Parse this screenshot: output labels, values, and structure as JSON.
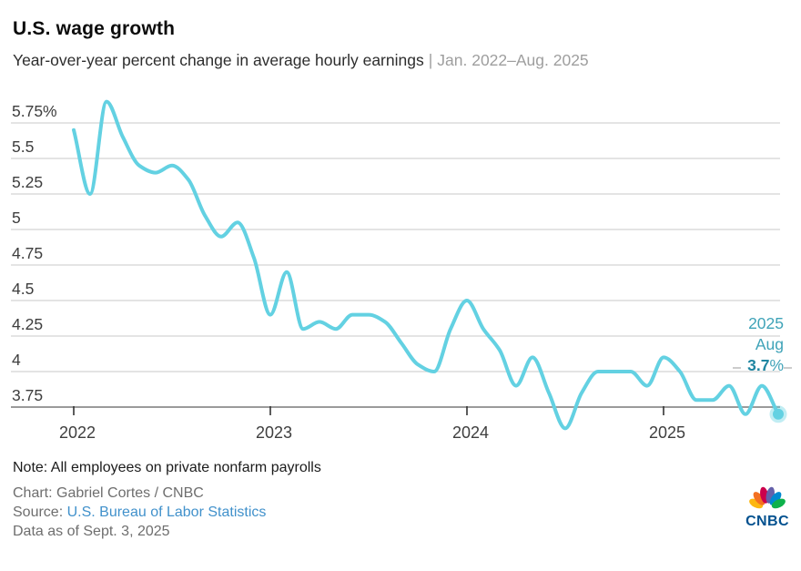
{
  "header": {
    "title": "U.S. wage growth",
    "subtitle": "Year-over-year percent change in average hourly earnings",
    "subtitle_separator": "|",
    "subtitle_range": "Jan. 2022–Aug. 2025"
  },
  "chart_data": {
    "type": "line",
    "title": "U.S. wage growth",
    "xlabel": "",
    "ylabel": "",
    "unit": "percent",
    "grid": "horizontal",
    "legend": "none",
    "ylim": [
      3.5,
      6.0
    ],
    "y_ticks": [
      5.75,
      5.5,
      5.25,
      5.0,
      4.75,
      4.5,
      4.25,
      4.0,
      3.75
    ],
    "y_tick_labels": [
      "5.75%",
      "5.5",
      "5.25",
      "5",
      "4.75",
      "4.5",
      "4.25",
      "4",
      "3.75"
    ],
    "x_tick_labels": [
      "2022",
      "2023",
      "2024",
      "2025"
    ],
    "x_tick_month_index": [
      0,
      12,
      24,
      36
    ],
    "months": [
      "Jan 2022",
      "Feb 2022",
      "Mar 2022",
      "Apr 2022",
      "May 2022",
      "Jun 2022",
      "Jul 2022",
      "Aug 2022",
      "Sep 2022",
      "Oct 2022",
      "Nov 2022",
      "Dec 2022",
      "Jan 2023",
      "Feb 2023",
      "Mar 2023",
      "Apr 2023",
      "May 2023",
      "Jun 2023",
      "Jul 2023",
      "Aug 2023",
      "Sep 2023",
      "Oct 2023",
      "Nov 2023",
      "Dec 2023",
      "Jan 2024",
      "Feb 2024",
      "Mar 2024",
      "Apr 2024",
      "May 2024",
      "Jun 2024",
      "Jul 2024",
      "Aug 2024",
      "Sep 2024",
      "Oct 2024",
      "Nov 2024",
      "Dec 2024",
      "Jan 2025",
      "Feb 2025",
      "Mar 2025",
      "Apr 2025",
      "May 2025",
      "Jun 2025",
      "Jul 2025",
      "Aug 2025"
    ],
    "series": [
      {
        "name": "Year-over-year percent change in average hourly earnings",
        "values": [
          5.7,
          5.25,
          5.9,
          5.65,
          5.45,
          5.4,
          5.45,
          5.35,
          5.1,
          4.95,
          5.05,
          4.8,
          4.4,
          4.7,
          4.3,
          4.35,
          4.3,
          4.4,
          4.4,
          4.35,
          4.2,
          4.05,
          4.0,
          4.3,
          4.5,
          4.3,
          4.15,
          3.9,
          4.1,
          3.85,
          3.6,
          3.85,
          4.0,
          4.0,
          4.0,
          3.9,
          4.1,
          4.0,
          3.8,
          3.8,
          3.9,
          3.7,
          3.9,
          3.7
        ]
      }
    ],
    "latest_point": {
      "month": "Aug 2025",
      "value": 3.7
    },
    "colors": {
      "line": "#63D1E2",
      "marker": "#63D1E2",
      "marker_halo_opacity": "0.4",
      "annotation": "#3FA3B8",
      "annotation_bold": "#1F86A1",
      "gridline": "#D3D3D3",
      "axis_line": "#9A9A9A",
      "tick": "#333333",
      "axis_text": "#3E3E3E"
    }
  },
  "annotation": {
    "year": "2025",
    "month": "Aug",
    "value": "3.7",
    "suffix": "%"
  },
  "footer": {
    "note": "Note: All employees on private nonfarm payrolls",
    "credit": "Chart: Gabriel Cortes / CNBC",
    "source_label": "Source:",
    "source_link_text": "U.S. Bureau of Labor Statistics",
    "data_as_of": "Data as of Sept. 3, 2025",
    "logo_text": "CNBC"
  }
}
